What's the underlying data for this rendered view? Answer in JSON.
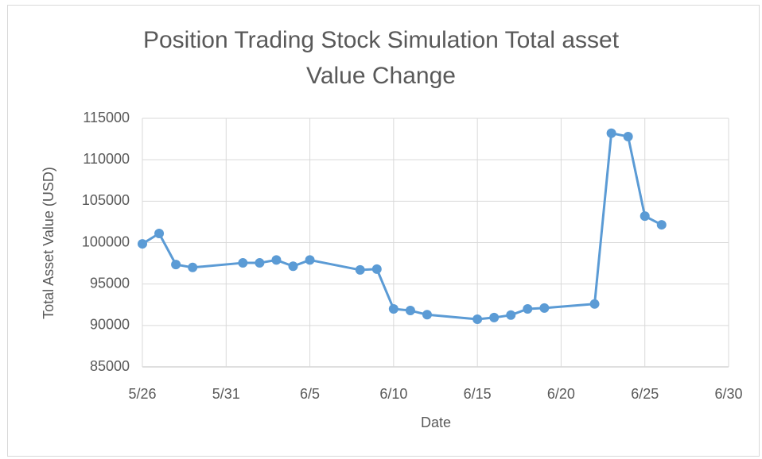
{
  "chart_data": {
    "type": "line",
    "title": "Position Trading Stock Simulation Total asset Value Change",
    "xlabel": "Date",
    "ylabel": "Total Asset Value (USD)",
    "x": [
      "5/26",
      "5/27",
      "5/28",
      "5/29",
      "6/1",
      "6/2",
      "6/3",
      "6/4",
      "6/5",
      "6/8",
      "6/9",
      "6/10",
      "6/11",
      "6/12",
      "6/15",
      "6/16",
      "6/17",
      "6/18",
      "6/19",
      "6/22",
      "6/23",
      "6/24",
      "6/25",
      "6/26"
    ],
    "series": [
      {
        "color": "#5b9bd5",
        "values": [
          99850,
          101100,
          97350,
          97000,
          97550,
          97550,
          97900,
          97150,
          97900,
          96700,
          96800,
          92000,
          91800,
          91300,
          90750,
          90950,
          91250,
          92000,
          92100,
          92600,
          113200,
          112800,
          103200,
          102150
        ]
      }
    ],
    "xlim": [
      "5/26",
      "6/30"
    ],
    "xticks": [
      "5/26",
      "5/31",
      "6/5",
      "6/10",
      "6/15",
      "6/20",
      "6/25",
      "6/30"
    ],
    "ylim": [
      85000,
      115000
    ],
    "yticks": [
      85000,
      90000,
      95000,
      100000,
      105000,
      110000,
      115000
    ],
    "grid": true
  }
}
